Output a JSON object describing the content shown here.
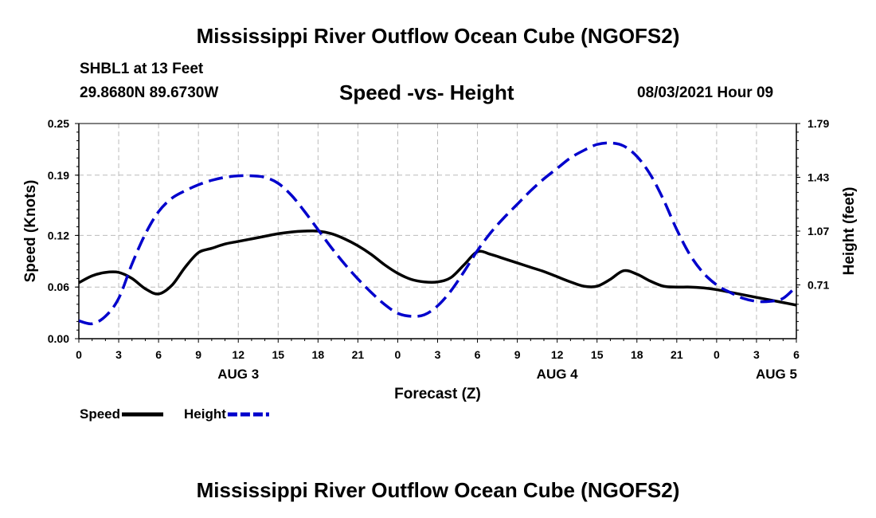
{
  "header": {
    "title": "Mississippi River Outflow Ocean Cube (NGOFS2)",
    "station": "SHBL1 at 13 Feet",
    "coords": "29.8680N  89.6730W",
    "subtitle": "Speed -vs- Height",
    "datetime": "08/03/2021 Hour 09"
  },
  "footer": {
    "title": "Mississippi River Outflow Ocean Cube (NGOFS2)"
  },
  "chart_data": {
    "type": "line",
    "title": "Speed -vs- Height",
    "xlabel": "Forecast (Z)",
    "ylabel": "Speed (Knots)",
    "y2label": "Height (feet)",
    "xlim": [
      0,
      54
    ],
    "ylim": [
      0.0,
      0.25
    ],
    "y2lim": [
      0.35,
      1.79
    ],
    "x_tick_labels": [
      "0",
      "3",
      "6",
      "9",
      "12",
      "15",
      "18",
      "21",
      "0",
      "3",
      "6",
      "9",
      "12",
      "15",
      "18",
      "21",
      "0",
      "3",
      "6"
    ],
    "y_tick_values": [
      0.0,
      0.06,
      0.12,
      0.19,
      0.25
    ],
    "y_tick_labels": [
      "0.00",
      "0.06",
      "0.12",
      "0.19",
      "0.25"
    ],
    "y2_tick_values": [
      0.71,
      1.07,
      1.43,
      1.79
    ],
    "y2_tick_labels": [
      "0.71",
      "1.07",
      "1.43",
      "1.79"
    ],
    "day_labels": [
      {
        "x": 12,
        "label": "AUG 3"
      },
      {
        "x": 36,
        "label": "AUG 4"
      },
      {
        "x": 52.5,
        "label": "AUG 5"
      }
    ],
    "grid": true,
    "legend": [
      {
        "name": "Speed",
        "color": "#000000",
        "style": "solid"
      },
      {
        "name": "Height",
        "color": "#0000cc",
        "style": "dashed"
      }
    ],
    "series": [
      {
        "name": "Speed",
        "axis": "left",
        "color": "#000000",
        "style": "solid",
        "x": [
          0,
          1,
          2,
          3,
          4,
          5,
          6,
          7,
          8,
          9,
          10,
          11,
          12,
          13,
          14,
          15,
          16,
          17,
          18,
          19,
          20,
          21,
          22,
          23,
          24,
          25,
          26,
          27,
          28,
          29,
          30,
          31,
          32,
          33,
          34,
          35,
          36,
          37,
          38,
          39,
          40,
          41,
          42,
          43,
          44,
          45,
          46,
          47,
          48,
          49,
          50,
          51,
          52,
          53,
          54
        ],
        "values": [
          0.065,
          0.073,
          0.077,
          0.077,
          0.07,
          0.058,
          0.052,
          0.062,
          0.083,
          0.1,
          0.105,
          0.11,
          0.113,
          0.116,
          0.119,
          0.122,
          0.124,
          0.125,
          0.125,
          0.122,
          0.116,
          0.108,
          0.098,
          0.086,
          0.076,
          0.069,
          0.066,
          0.066,
          0.071,
          0.086,
          0.101,
          0.098,
          0.093,
          0.088,
          0.083,
          0.078,
          0.072,
          0.066,
          0.061,
          0.061,
          0.069,
          0.079,
          0.075,
          0.067,
          0.061,
          0.06,
          0.06,
          0.059,
          0.057,
          0.054,
          0.051,
          0.048,
          0.045,
          0.042,
          0.039
        ]
      },
      {
        "name": "Height",
        "axis": "right",
        "color": "#0000cc",
        "style": "dashed",
        "x": [
          0,
          1,
          2,
          3,
          4,
          5,
          6,
          7,
          8,
          9,
          10,
          11,
          12,
          13,
          14,
          15,
          16,
          17,
          18,
          19,
          20,
          21,
          22,
          23,
          24,
          25,
          26,
          27,
          28,
          29,
          30,
          31,
          32,
          33,
          34,
          35,
          36,
          37,
          38,
          39,
          40,
          41,
          42,
          43,
          44,
          45,
          46,
          47,
          48,
          49,
          50,
          51,
          52,
          53,
          54
        ],
        "values": [
          0.47,
          0.45,
          0.5,
          0.62,
          0.85,
          1.05,
          1.2,
          1.29,
          1.34,
          1.38,
          1.41,
          1.43,
          1.44,
          1.44,
          1.43,
          1.39,
          1.31,
          1.2,
          1.08,
          0.96,
          0.85,
          0.75,
          0.66,
          0.58,
          0.52,
          0.5,
          0.51,
          0.57,
          0.67,
          0.8,
          0.94,
          1.06,
          1.16,
          1.25,
          1.34,
          1.42,
          1.49,
          1.56,
          1.61,
          1.65,
          1.66,
          1.64,
          1.57,
          1.45,
          1.28,
          1.08,
          0.91,
          0.79,
          0.71,
          0.66,
          0.62,
          0.6,
          0.6,
          0.62,
          0.7
        ]
      }
    ]
  }
}
